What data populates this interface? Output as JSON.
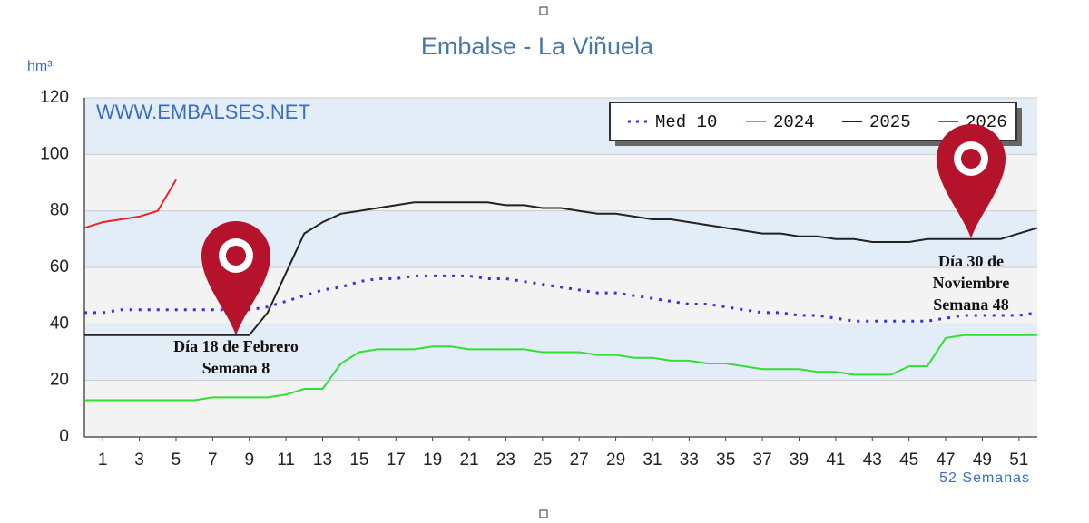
{
  "chart_data": {
    "type": "line",
    "title": "Embalse - La Viñuela",
    "y_label": "hm³",
    "x_label": "52 Semanas",
    "watermark": "WWW.EMBALSES.NET",
    "x": [
      0,
      1,
      2,
      3,
      4,
      5,
      6,
      7,
      8,
      9,
      10,
      11,
      12,
      13,
      14,
      15,
      16,
      17,
      18,
      19,
      20,
      21,
      22,
      23,
      24,
      25,
      26,
      27,
      28,
      29,
      30,
      31,
      32,
      33,
      34,
      35,
      36,
      37,
      38,
      39,
      40,
      41,
      42,
      43,
      44,
      45,
      46,
      47,
      48,
      49,
      50,
      51,
      52
    ],
    "series": [
      {
        "name": "Med 10",
        "color": "#3333dd",
        "dashed": true,
        "values": [
          44,
          44,
          45,
          45,
          45,
          45,
          45,
          45,
          45,
          45,
          46,
          48,
          50,
          52,
          53,
          55,
          56,
          56,
          57,
          57,
          57,
          57,
          56,
          56,
          55,
          54,
          53,
          52,
          51,
          51,
          50,
          49,
          48,
          47,
          47,
          46,
          45,
          44,
          44,
          43,
          43,
          42,
          41,
          41,
          41,
          41,
          41,
          42,
          43,
          43,
          43,
          43,
          44
        ]
      },
      {
        "name": "2024",
        "color": "#33dd33",
        "values": [
          13,
          13,
          13,
          13,
          13,
          13,
          13,
          14,
          14,
          14,
          14,
          15,
          17,
          17,
          26,
          30,
          31,
          31,
          31,
          32,
          32,
          31,
          31,
          31,
          31,
          30,
          30,
          30,
          29,
          29,
          28,
          28,
          27,
          27,
          26,
          26,
          25,
          24,
          24,
          24,
          23,
          23,
          22,
          22,
          22,
          25,
          25,
          35,
          36,
          36,
          36,
          36,
          36
        ]
      },
      {
        "name": "2025",
        "color": "#222222",
        "values": [
          36,
          36,
          36,
          36,
          36,
          36,
          36,
          36,
          36,
          36,
          44,
          58,
          72,
          76,
          79,
          80,
          81,
          82,
          83,
          83,
          83,
          83,
          83,
          82,
          82,
          81,
          81,
          80,
          79,
          79,
          78,
          77,
          77,
          76,
          75,
          74,
          73,
          72,
          72,
          71,
          71,
          70,
          70,
          69,
          69,
          69,
          70,
          70,
          70,
          70,
          70,
          72,
          74
        ]
      },
      {
        "name": "2026",
        "color": "#ee2222",
        "values": [
          74,
          76,
          77,
          78,
          80,
          91,
          null,
          null,
          null,
          null,
          null,
          null,
          null,
          null,
          null,
          null,
          null,
          null,
          null,
          null,
          null,
          null,
          null,
          null,
          null,
          null,
          null,
          null,
          null,
          null,
          null,
          null,
          null,
          null,
          null,
          null,
          null,
          null,
          null,
          null,
          null,
          null,
          null,
          null,
          null,
          null,
          null,
          null,
          null,
          null,
          null,
          null,
          null
        ]
      }
    ],
    "xlim": [
      0,
      52
    ],
    "xticks": [
      1,
      3,
      5,
      7,
      9,
      11,
      13,
      15,
      17,
      19,
      21,
      23,
      25,
      27,
      29,
      31,
      33,
      35,
      37,
      39,
      41,
      43,
      45,
      47,
      49,
      51
    ],
    "ylim": [
      0,
      120
    ],
    "yticks": [
      0,
      20,
      40,
      60,
      80,
      100,
      120
    ],
    "grid": true,
    "legend": "upper right",
    "annotations": [
      {
        "lines": [
          "Día 18 de Febrero",
          "Semana 8"
        ]
      },
      {
        "lines": [
          "Día 30 de",
          "Noviembre",
          "Semana 48"
        ]
      }
    ]
  }
}
